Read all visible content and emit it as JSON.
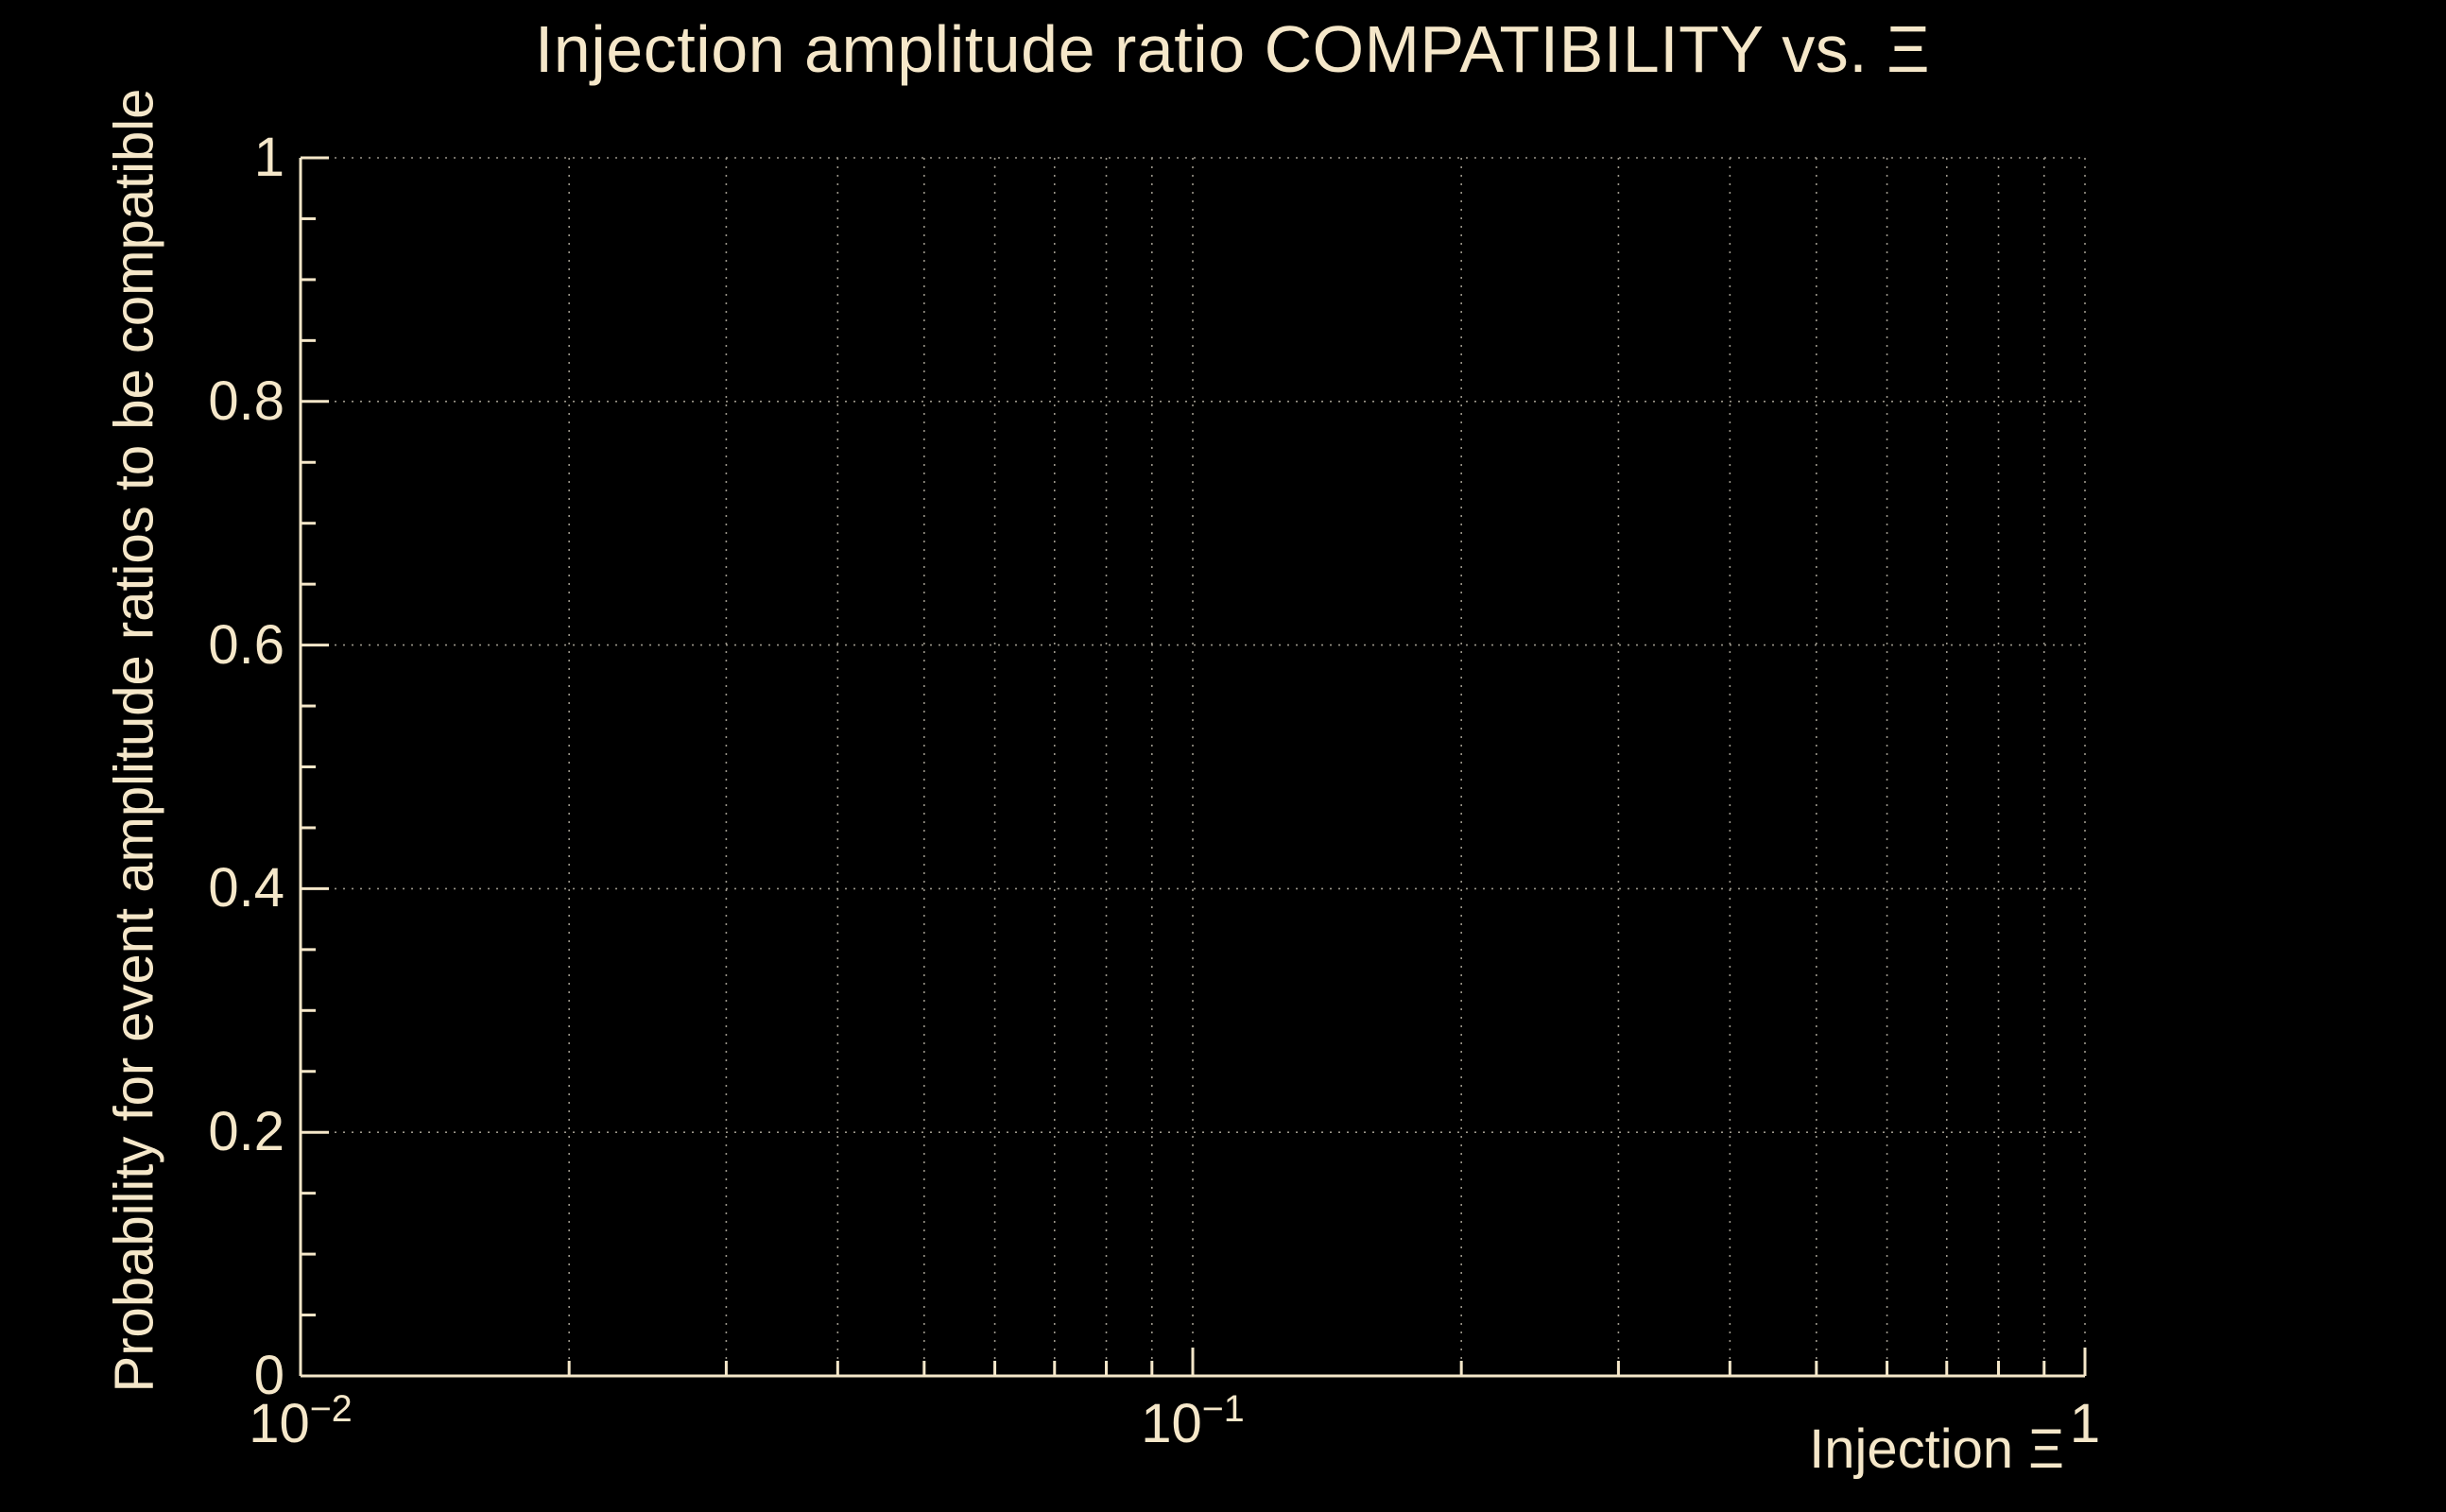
{
  "chart_data": {
    "type": "scatter",
    "title": "Injection amplitude ratio COMPATIBILITY vs.  Ξ",
    "xlabel": "Injection Ξ",
    "ylabel": "Probability for event amplitude ratios to be compatible",
    "x_scale": "log",
    "xlim": [
      0.01,
      1
    ],
    "ylim": [
      0,
      1
    ],
    "x_major_ticks": [
      {
        "value": 0.01,
        "mantissa": "10",
        "exponent": "−2"
      },
      {
        "value": 0.1,
        "mantissa": "10",
        "exponent": "−1"
      },
      {
        "value": 1,
        "mantissa": "1",
        "exponent": ""
      }
    ],
    "y_major_ticks": [
      {
        "value": 0,
        "label": "0"
      },
      {
        "value": 0.2,
        "label": "0.2"
      },
      {
        "value": 0.4,
        "label": "0.4"
      },
      {
        "value": 0.6,
        "label": "0.6"
      },
      {
        "value": 0.8,
        "label": "0.8"
      },
      {
        "value": 1,
        "label": "1"
      }
    ],
    "y_minor_step": 0.05,
    "grid": true,
    "legend": false,
    "series": []
  },
  "colors": {
    "background": "#000000",
    "text": "#f5e7c9",
    "axis": "#f5e7c9",
    "grid": "#9b968a"
  }
}
